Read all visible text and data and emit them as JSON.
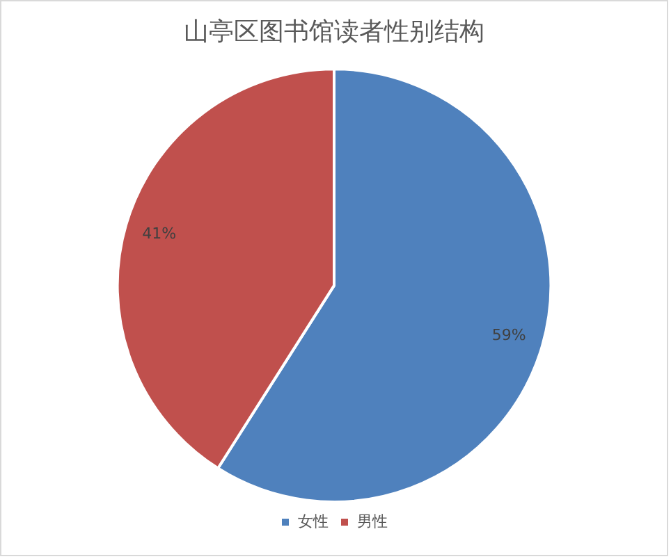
{
  "chart_data": {
    "type": "pie",
    "title": "山亭区图书馆读者性别结构",
    "categories": [
      "女性",
      "男性"
    ],
    "values": [
      59,
      41
    ],
    "colors": [
      "#4f81bd",
      "#c0504d"
    ],
    "value_labels": [
      "59%",
      "41%"
    ],
    "legend": "bottom"
  }
}
